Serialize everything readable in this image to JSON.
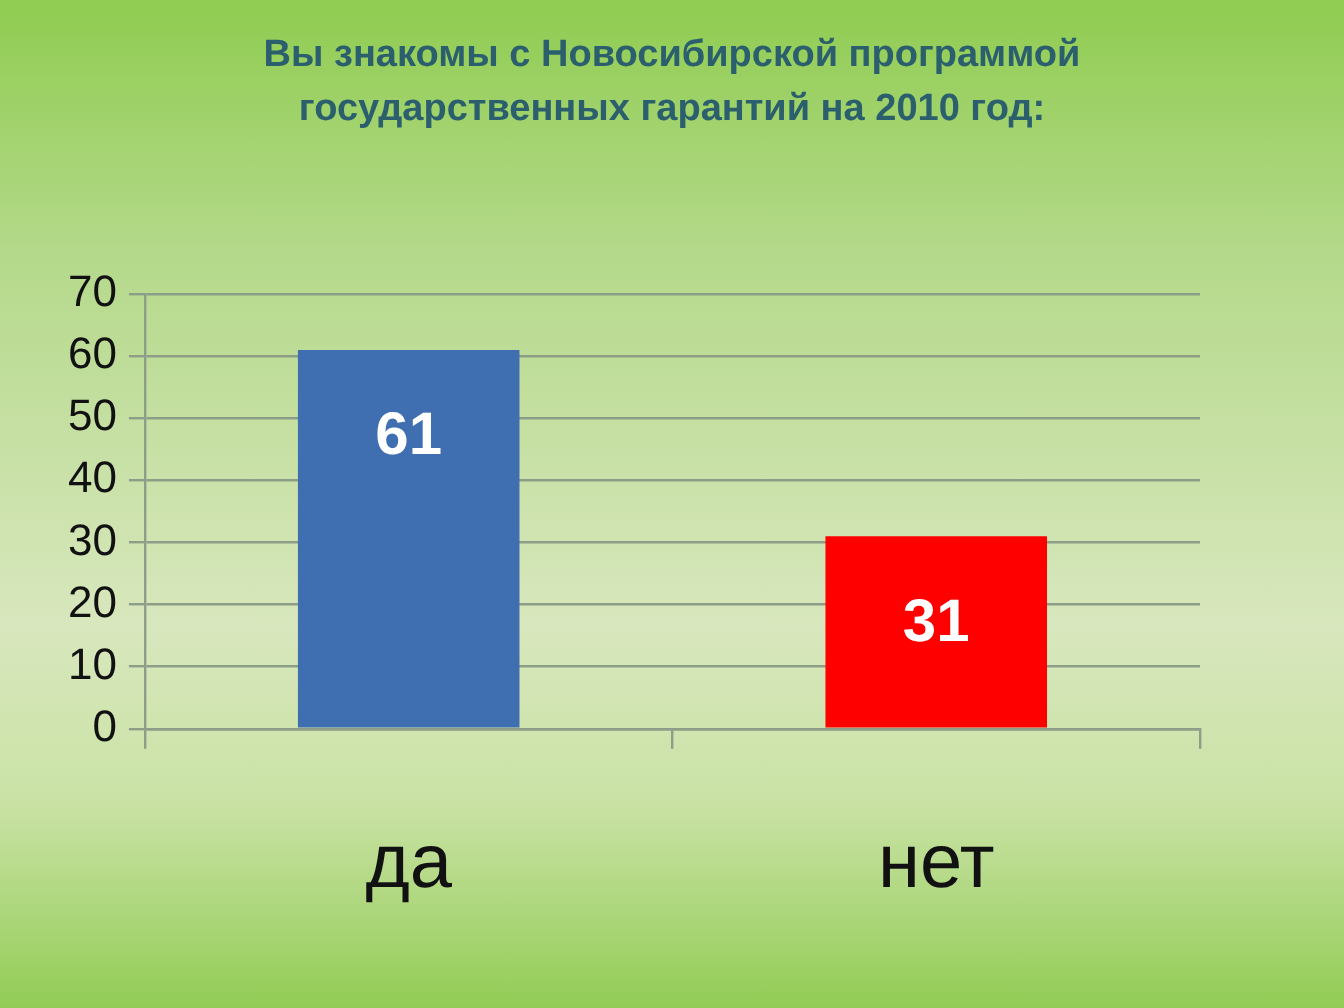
{
  "chart_data": {
    "type": "bar",
    "title": "Вы знакомы с Новосибирской программой государственных гарантий на 2010 год:",
    "categories": [
      "да",
      "нет"
    ],
    "values": [
      61,
      31
    ],
    "colors": [
      "#3f6fb0",
      "#ff0000"
    ],
    "ylim": [
      0,
      70
    ],
    "yticks": [
      0,
      10,
      20,
      30,
      40,
      50,
      60,
      70
    ],
    "grid": "y",
    "legend": false,
    "data_labels": true
  }
}
